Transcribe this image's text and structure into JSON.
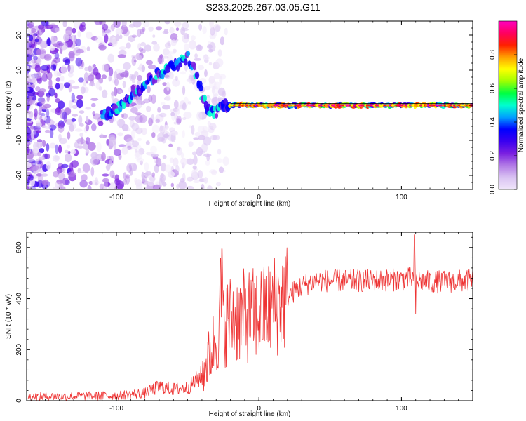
{
  "title": "S233.2025.267.03.05.G11",
  "colors": {
    "snr_line": "#ee3333",
    "ridge_line": "#000000",
    "colormap": [
      "#f0e6fa",
      "#d9c2f2",
      "#b27ae6",
      "#7a20e0",
      "#3a00f0",
      "#0000ff",
      "#00a0ff",
      "#00ffd0",
      "#00ff40",
      "#a0ff00",
      "#ffff00",
      "#ffa000",
      "#ff2000",
      "#ff0060",
      "#ff00c0"
    ]
  },
  "chart_data": [
    {
      "type": "heatmap",
      "name": "spectrogram",
      "xlabel": "Height of straight line (km)",
      "ylabel": "Frequency (Hz)",
      "xlim": [
        -163,
        150
      ],
      "ylim": [
        -24,
        24
      ],
      "xticks": [
        -100,
        0,
        100
      ],
      "xtick_labels": [
        "-100",
        "0",
        "100"
      ],
      "yticks": [
        -20,
        -10,
        0,
        10,
        20
      ],
      "ytick_labels": [
        "-20",
        "-10",
        "0",
        "10",
        "20"
      ],
      "ridge": {
        "x": [
          -110,
          -100,
          -90,
          -80,
          -70,
          -60,
          -50,
          -45,
          -40,
          -35,
          -30,
          -25,
          -20,
          0,
          50,
          100,
          150
        ],
        "y": [
          -3,
          -1,
          3,
          6,
          9,
          11,
          14,
          10,
          3,
          -2,
          -2,
          0,
          0,
          0,
          0,
          0,
          0
        ]
      },
      "hot_segment": {
        "x": [
          -20,
          150
        ],
        "y": 0
      },
      "colorbar": {
        "label": "Normalized spectral amplitude",
        "lim": [
          0,
          1
        ],
        "ticks": [
          0,
          0.2,
          0.4,
          0.6,
          0.8
        ],
        "tick_labels": [
          "0.0",
          "0.2",
          "0.4",
          "0.6",
          "0.8"
        ]
      }
    },
    {
      "type": "line",
      "name": "snr",
      "xlabel": "Height of straight line (km)",
      "ylabel": "SNR (10 * v/v)",
      "xlim": [
        -163,
        150
      ],
      "ylim": [
        0,
        660
      ],
      "xticks": [
        -100,
        0,
        100
      ],
      "xtick_labels": [
        "-100",
        "0",
        "100"
      ],
      "yticks": [
        0,
        200,
        400,
        600
      ],
      "ytick_labels": [
        "0",
        "200",
        "400",
        "600"
      ],
      "trend": {
        "x": [
          -163,
          -100,
          -80,
          -70,
          -60,
          -50,
          -40,
          -35,
          -30,
          -26,
          -20,
          -10,
          0,
          10,
          20,
          30,
          40,
          60,
          80,
          100,
          108,
          112,
          120,
          150
        ],
        "y": [
          15,
          20,
          30,
          55,
          45,
          50,
          100,
          170,
          250,
          300,
          320,
          330,
          340,
          370,
          410,
          450,
          470,
          470,
          470,
          475,
          480,
          470,
          465,
          470
        ]
      },
      "spikes": [
        {
          "x": -26,
          "y": 595
        },
        {
          "x": -27,
          "y": 560
        },
        {
          "x": 109,
          "y": 650
        },
        {
          "x": 110,
          "y": 340
        }
      ]
    }
  ]
}
